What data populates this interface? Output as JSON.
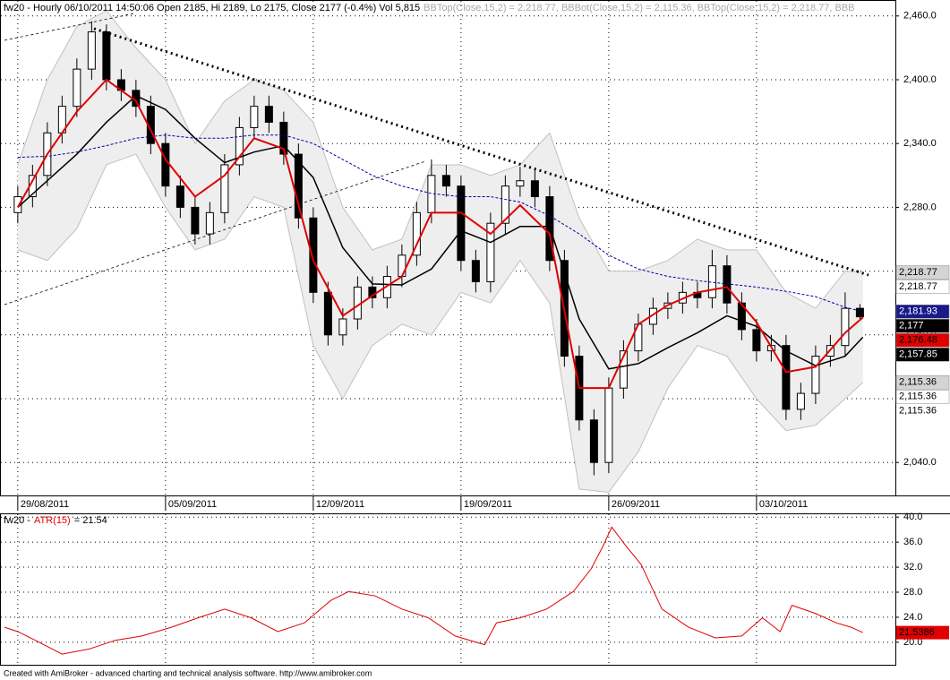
{
  "chart_data": [
    {
      "type": "candlestick",
      "title": "fw20 - Hourly 06/10/2011 14:50:06 Open 2185, Hi 2189, Lo 2175, Close 2177 (-0.4%) Vol 5,815",
      "subtitle": "BBTop(Close,15,2) = 2,218.77, BBBot(Close,15,2) = 2,115.36, BBTop(Close,15,2) = 2,218.77, BBB",
      "x": [
        0,
        0.5,
        1,
        1.5,
        2,
        2.5,
        3,
        3.5,
        4,
        4.5,
        5,
        5.5,
        6,
        6.5,
        7,
        7.5,
        8,
        8.5,
        9,
        9.5,
        10,
        10.5,
        11,
        11.5,
        12,
        12.5,
        13,
        13.5,
        14,
        14.5,
        15,
        15.5,
        16,
        16.5,
        17,
        17.5,
        18,
        18.5,
        19,
        19.5,
        20,
        20.5,
        21,
        21.5,
        22,
        22.5,
        23,
        23.5,
        24,
        24.5,
        25,
        25.5,
        26,
        26.5,
        27,
        27.5,
        28,
        28.5
      ],
      "open": [
        2275,
        2290,
        2310,
        2350,
        2375,
        2410,
        2445,
        2400,
        2390,
        2375,
        2340,
        2300,
        2280,
        2255,
        2275,
        2320,
        2355,
        2375,
        2360,
        2330,
        2270,
        2200,
        2160,
        2175,
        2205,
        2195,
        2215,
        2235,
        2275,
        2310,
        2300,
        2230,
        2210,
        2265,
        2300,
        2305,
        2290,
        2230,
        2140,
        2080,
        2040,
        2110,
        2145,
        2170,
        2185,
        2190,
        2200,
        2195,
        2225,
        2190,
        2165,
        2145,
        2150,
        2090,
        2105,
        2140,
        2150,
        2185
      ],
      "high": [
        2300,
        2320,
        2360,
        2385,
        2420,
        2455,
        2452,
        2410,
        2400,
        2385,
        2350,
        2310,
        2290,
        2285,
        2330,
        2365,
        2385,
        2385,
        2370,
        2340,
        2280,
        2210,
        2185,
        2215,
        2215,
        2225,
        2245,
        2285,
        2325,
        2320,
        2310,
        2240,
        2275,
        2310,
        2318,
        2315,
        2300,
        2240,
        2150,
        2090,
        2120,
        2155,
        2180,
        2195,
        2200,
        2210,
        2210,
        2240,
        2235,
        2200,
        2175,
        2160,
        2160,
        2115,
        2150,
        2160,
        2200,
        2189
      ],
      "low": [
        2265,
        2280,
        2300,
        2340,
        2365,
        2400,
        2390,
        2380,
        2365,
        2330,
        2290,
        2270,
        2245,
        2245,
        2265,
        2310,
        2345,
        2350,
        2320,
        2260,
        2190,
        2150,
        2150,
        2165,
        2185,
        2185,
        2205,
        2225,
        2265,
        2290,
        2220,
        2200,
        2200,
        2255,
        2290,
        2280,
        2220,
        2130,
        2070,
        2028,
        2030,
        2100,
        2135,
        2160,
        2175,
        2180,
        2185,
        2185,
        2180,
        2155,
        2135,
        2135,
        2080,
        2080,
        2095,
        2130,
        2140,
        2175
      ],
      "close": [
        2290,
        2310,
        2350,
        2375,
        2410,
        2445,
        2400,
        2390,
        2375,
        2340,
        2300,
        2280,
        2255,
        2275,
        2320,
        2355,
        2375,
        2360,
        2330,
        2270,
        2200,
        2160,
        2175,
        2205,
        2195,
        2215,
        2235,
        2275,
        2310,
        2300,
        2230,
        2210,
        2265,
        2300,
        2305,
        2290,
        2230,
        2140,
        2080,
        2040,
        2110,
        2145,
        2170,
        2185,
        2190,
        2200,
        2195,
        2225,
        2190,
        2165,
        2145,
        2150,
        2090,
        2105,
        2140,
        2150,
        2185,
        2177
      ],
      "up_color": "#ffffff",
      "down_color": "#000000",
      "overlay_x": [
        0,
        1,
        2,
        3,
        4,
        5,
        6,
        7,
        8,
        9,
        10,
        11,
        12,
        13,
        14,
        15,
        16,
        17,
        18,
        19,
        20,
        21,
        22,
        23,
        24,
        25,
        26,
        27,
        28,
        28.6
      ],
      "lines": [
        {
          "color": "#0000a0",
          "dash": true,
          "values": [
            2327,
            2328,
            2332,
            2338,
            2345,
            2348,
            2345,
            2345,
            2348,
            2348,
            2340,
            2325,
            2310,
            2300,
            2293,
            2290,
            2290,
            2285,
            2272,
            2255,
            2235,
            2222,
            2215,
            2211,
            2208,
            2205,
            2201,
            2196,
            2186,
            2181.93
          ]
        },
        {
          "color": "#000000",
          "dash": false,
          "values": [
            2280,
            2305,
            2330,
            2360,
            2385,
            2372,
            2345,
            2322,
            2332,
            2338,
            2308,
            2242,
            2208,
            2207,
            2222,
            2258,
            2247,
            2262,
            2262,
            2175,
            2128,
            2133,
            2148,
            2162,
            2178,
            2168,
            2145,
            2131,
            2140,
            2157.85
          ]
        },
        {
          "color": "#e00000",
          "dash": false,
          "values": [
            2280,
            2330,
            2370,
            2400,
            2380,
            2325,
            2290,
            2310,
            2345,
            2335,
            2230,
            2178,
            2197,
            2215,
            2275,
            2275,
            2255,
            2282,
            2255,
            2110,
            2110,
            2170,
            2188,
            2200,
            2205,
            2172,
            2125,
            2130,
            2162,
            2176.48
          ]
        }
      ],
      "band": {
        "color": "#eeeeee",
        "upper": [
          2320,
          2400,
          2450,
          2465,
          2430,
          2400,
          2340,
          2380,
          2400,
          2390,
          2360,
          2280,
          2240,
          2250,
          2320,
          2320,
          2310,
          2320,
          2350,
          2270,
          2220,
          2220,
          2230,
          2250,
          2240,
          2240,
          2200,
          2185,
          2220,
          2218.77
        ],
        "lower": [
          2240,
          2230,
          2260,
          2320,
          2330,
          2280,
          2240,
          2250,
          2290,
          2280,
          2150,
          2100,
          2150,
          2170,
          2160,
          2200,
          2190,
          2230,
          2190,
          2015,
          2012,
          2050,
          2110,
          2150,
          2140,
          2100,
          2070,
          2075,
          2100,
          2115.36
        ]
      },
      "xlim": [
        -0.45,
        29.7
      ],
      "xticks": [
        {
          "value": 0,
          "label": "29/08/2011"
        },
        {
          "value": 5,
          "label": "05/09/2011"
        },
        {
          "value": 10,
          "label": "12/09/2011"
        },
        {
          "value": 15,
          "label": "19/09/2011"
        },
        {
          "value": 20,
          "label": "26/09/2011"
        },
        {
          "value": 25,
          "label": "03/10/2011"
        }
      ],
      "ylim": [
        2009,
        2475
      ],
      "yticks": [
        {
          "value": 2040,
          "label": "2,040.0"
        },
        {
          "value": 2100,
          "label": "2,100.0"
        },
        {
          "value": 2160,
          "label": "2,160.0"
        },
        {
          "value": 2220,
          "label": "2,220.0"
        },
        {
          "value": 2280,
          "label": "2,280.0"
        },
        {
          "value": 2340,
          "label": "2,340.0"
        },
        {
          "value": 2400,
          "label": "2,400.0"
        },
        {
          "value": 2460,
          "label": "2,460.0"
        }
      ],
      "grid": true,
      "markers": [
        {
          "value": 2218.77,
          "label": "2,218.77",
          "color": "#d4d4d4",
          "text_color": "#000000"
        },
        {
          "value": 2218.77,
          "label": "2,218.77",
          "color": "#ffffff",
          "text_color": "#000000"
        },
        {
          "value": 2181.93,
          "label": "2,181.93",
          "color": "#1a1a8c",
          "text_color": "#ffffff"
        },
        {
          "value": 2177,
          "label": "2,177",
          "color": "#000000",
          "text_color": "#ffffff"
        },
        {
          "value": 2176.48,
          "label": "2,176.48",
          "color": "#e00000",
          "text_color": "#000000"
        },
        {
          "value": 2157.85,
          "label": "2,157.85",
          "color": "#000000",
          "text_color": "#ffffff"
        },
        {
          "value": 2115.36,
          "label": "2,115.36",
          "color": "#d4d4d4",
          "text_color": "#000000"
        },
        {
          "value": 2115.36,
          "label": "2,115.36",
          "color": "#ffffff",
          "text_color": "#000000"
        },
        {
          "value": 2115.36,
          "label": "2,115.36",
          "color": "none",
          "text_color": "#000000"
        }
      ]
    },
    {
      "type": "line",
      "title_parts": [
        {
          "text": "fw20 -",
          "color": "#000000"
        },
        {
          "text": "ATR(15)",
          "color": "#e00000"
        },
        {
          "text": "= 21.54",
          "color": "#000000"
        }
      ],
      "x": [
        -0.45,
        0,
        0.6,
        1.5,
        2.4,
        3.3,
        4.2,
        5.2,
        6.1,
        7,
        7.9,
        8.8,
        9.7,
        10.6,
        11.2,
        12.1,
        13,
        13.9,
        14.8,
        15.8,
        16.2,
        17,
        17.9,
        18.8,
        19.4,
        19.8,
        20.1,
        20.6,
        21.1,
        21.8,
        22.7,
        23.6,
        24.5,
        25.2,
        25.8,
        26.2,
        27,
        27.7,
        28.2,
        28.6
      ],
      "values": [
        22.4,
        21.7,
        20.3,
        18.1,
        18.9,
        20.3,
        21,
        22.4,
        23.9,
        25.3,
        23.9,
        21.7,
        23.1,
        26.7,
        28.1,
        27.4,
        25.3,
        23.9,
        21,
        19.6,
        23.1,
        23.9,
        25.3,
        28.1,
        31.7,
        35.3,
        38.4,
        35.3,
        32.4,
        25.3,
        22.4,
        20.7,
        21,
        23.9,
        21.7,
        25.9,
        24.6,
        23.1,
        22.4,
        21.54
      ],
      "color": "#e00000",
      "xlim": [
        -0.45,
        29.7
      ],
      "ylim": [
        16.4,
        40.6
      ],
      "yticks": [
        {
          "value": 20,
          "label": "20.0"
        },
        {
          "value": 24,
          "label": "24.0"
        },
        {
          "value": 28,
          "label": "28.0"
        },
        {
          "value": 32,
          "label": "32.0"
        },
        {
          "value": 36,
          "label": "36.0"
        },
        {
          "value": 40,
          "label": "40.0"
        }
      ],
      "grid": true,
      "marker": {
        "value": 21.5386,
        "label": "21.5386",
        "color": "#e00000",
        "text_color": "#000000"
      }
    }
  ],
  "footer": "Created with AmiBroker - advanced charting and technical analysis software. http://www.amibroker.com"
}
